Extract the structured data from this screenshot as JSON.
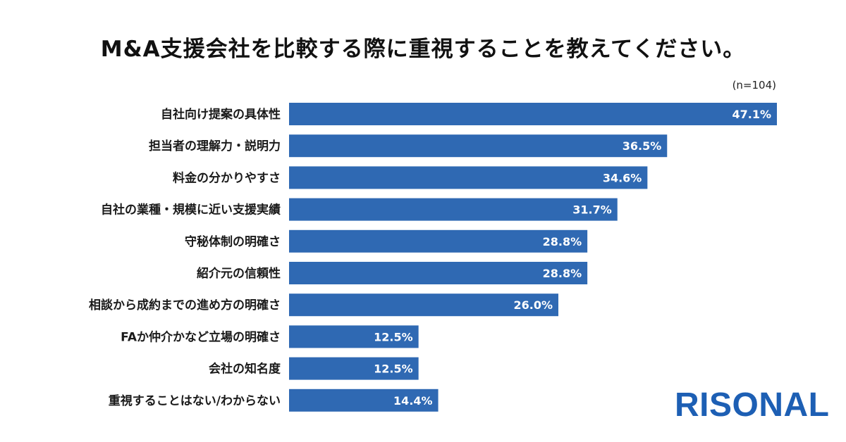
{
  "title": "M&A支援会社を比較する際に重視することを教えてください。",
  "sample_size": "(n=104)",
  "brand": "RISONAL",
  "colors": {
    "bar": "#2f69b3",
    "logo": "#1d5fb4"
  },
  "chart_data": {
    "type": "bar",
    "orientation": "horizontal",
    "title": "M&A支援会社を比較する際に重視することを教えてください。",
    "categories": [
      "自社向け提案の具体性",
      "担当者の理解力・説明力",
      "料金の分かりやすさ",
      "自社の業種・規模に近い支援実績",
      "守秘体制の明確さ",
      "紹介元の信頼性",
      "相談から成約までの進め方の明確さ",
      "FAか仲介かなど立場の明確さ",
      "会社の知名度",
      "重視することはない/わからない"
    ],
    "values": [
      47.1,
      36.5,
      34.6,
      31.7,
      28.8,
      28.8,
      26.0,
      12.5,
      12.5,
      14.4
    ],
    "value_labels": [
      "47.1%",
      "36.5%",
      "34.6%",
      "31.7%",
      "28.8%",
      "28.8%",
      "26.0%",
      "12.5%",
      "12.5%",
      "14.4%"
    ],
    "unit": "%",
    "xlim": [
      0,
      47.1
    ],
    "grid": false,
    "legend": "none"
  }
}
